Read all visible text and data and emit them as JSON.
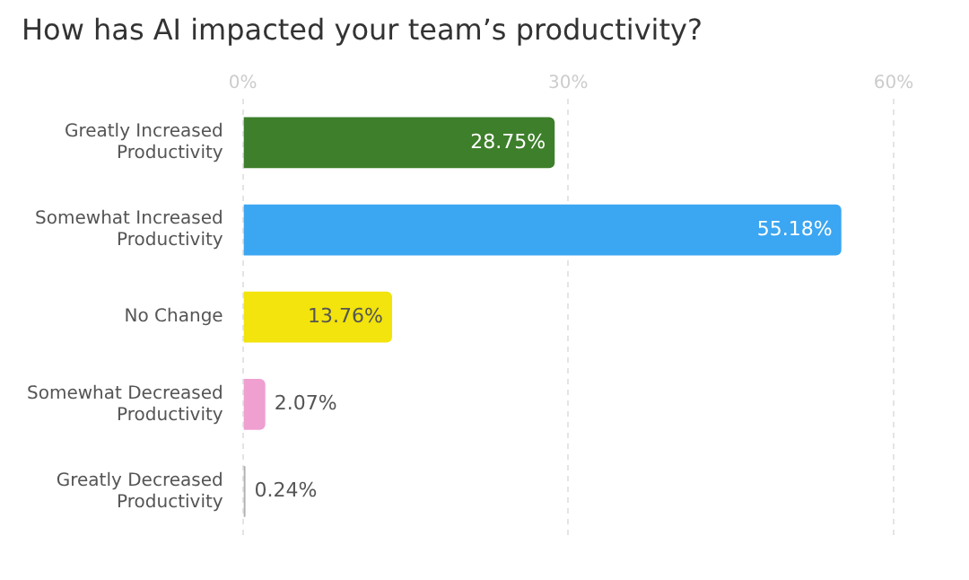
{
  "chart_data": {
    "type": "bar",
    "orientation": "horizontal",
    "title": "How has AI impacted your team’s productivity?",
    "categories": [
      "Greatly Increased Productivity",
      "Somewhat Increased Productivity",
      "No Change",
      "Somewhat Decreased Productivity",
      "Greatly Decreased Productivity"
    ],
    "values": [
      28.75,
      55.18,
      13.76,
      2.07,
      0.24
    ],
    "colors": [
      "#3d7f2a",
      "#3ba6f2",
      "#f2e40c",
      "#ef9fd0",
      "#b0b0b0"
    ],
    "value_labels": [
      "28.75%",
      "55.18%",
      "13.76%",
      "2.07%",
      "0.24%"
    ],
    "xlim": [
      0,
      60
    ],
    "xticks": [
      {
        "value": 0,
        "label": "0%"
      },
      {
        "value": 30,
        "label": "30%"
      },
      {
        "value": 60,
        "label": "60%"
      }
    ],
    "grid": "x",
    "legend": false
  }
}
